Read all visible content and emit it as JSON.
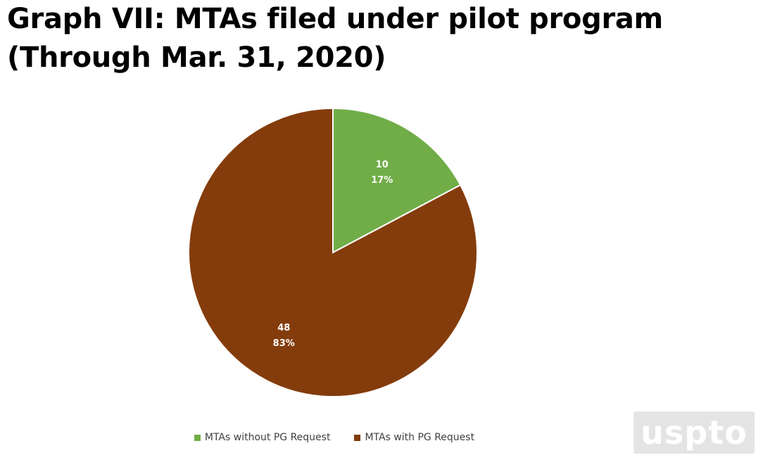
{
  "title_line1": "Graph VII: MTAs filed under pilot program",
  "title_line2": "(Through Mar. 31, 2020)",
  "watermark": "uspto",
  "chart_data": {
    "type": "pie",
    "title": "Graph VII: MTAs filed under pilot program (Through Mar. 31, 2020)",
    "categories": [
      "MTAs without PG Request",
      "MTAs with PG Request"
    ],
    "values": [
      10,
      48
    ],
    "percent_labels": [
      "17%",
      "83%"
    ],
    "value_labels": [
      "10",
      "48"
    ],
    "colors": [
      "#70ad47",
      "#843c0c"
    ],
    "start_angle_deg": 0,
    "direction": "clockwise",
    "legend_position": "bottom"
  }
}
